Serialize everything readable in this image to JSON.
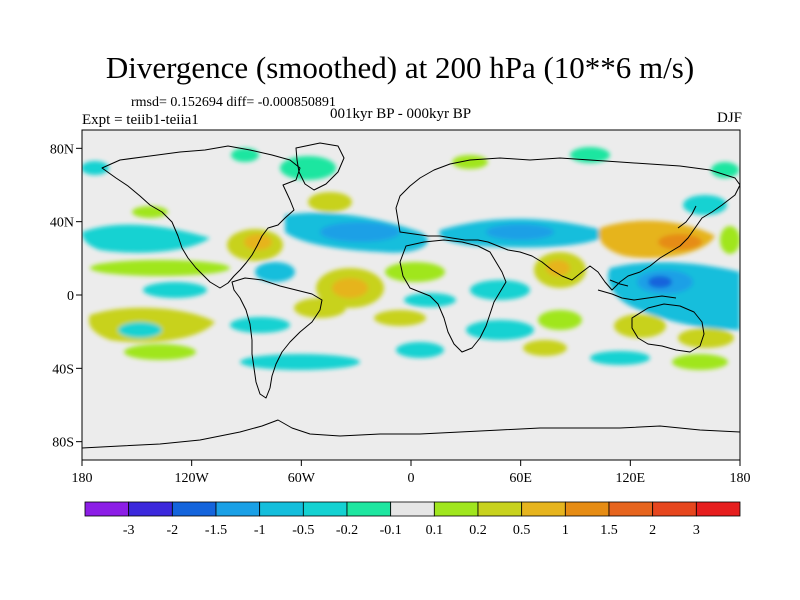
{
  "title": "Divergence (smoothed) at 200 hPa (10**6 m/s)",
  "stats": "rmsd= 0.152694 diff= -0.000850891",
  "experiment": "Expt = teiib1-teiia1",
  "period": "001kyr BP - 000kyr BP",
  "season": "DJF",
  "map": {
    "projection": "cylindrical equidistant",
    "lon_range": [
      -180,
      180
    ],
    "lat_range": [
      -90,
      90
    ],
    "background": "#ececec",
    "lat_ticks": [
      {
        "value": 80,
        "label": "80N"
      },
      {
        "value": 40,
        "label": "40N"
      },
      {
        "value": 0,
        "label": "0"
      },
      {
        "value": -40,
        "label": "40S"
      },
      {
        "value": -80,
        "label": "80S"
      }
    ],
    "lon_ticks": [
      {
        "value": -180,
        "label": "180"
      },
      {
        "value": -120,
        "label": "120W"
      },
      {
        "value": -60,
        "label": "60W"
      },
      {
        "value": 0,
        "label": "0"
      },
      {
        "value": 60,
        "label": "60E"
      },
      {
        "value": 120,
        "label": "120E"
      },
      {
        "value": 180,
        "label": "180"
      }
    ]
  },
  "colorbar": {
    "colors": [
      "#8c1ee6",
      "#3c28dc",
      "#1464dc",
      "#1aa0e6",
      "#14bedc",
      "#14d2d2",
      "#1ee6a0",
      "#e6e6e6",
      "#a0e61e",
      "#c8d21e",
      "#e6b41e",
      "#e68c14",
      "#e6641e",
      "#e6461e",
      "#e61e1e"
    ],
    "labels": [
      "-3",
      "-2",
      "-1.5",
      "-1",
      "-0.5",
      "-0.2",
      "-0.1",
      "0.1",
      "0.2",
      "0.5",
      "1",
      "1.5",
      "2",
      "3"
    ]
  }
}
